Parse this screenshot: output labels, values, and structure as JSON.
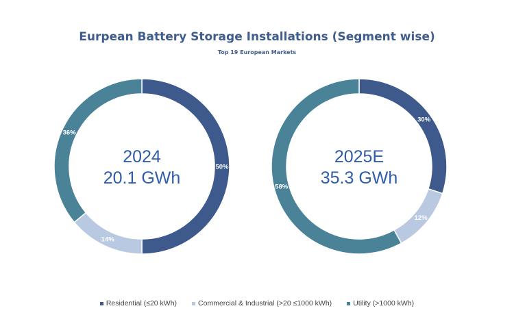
{
  "chart_data": [
    {
      "type": "pie",
      "title": "Eurpean Battery Storage Installations (Segment wise)",
      "subtitle": "Top 19 European Markets",
      "center_label": [
        "2024",
        "20.1 GWh"
      ],
      "categories": [
        "Residential (≤20 kWh)",
        "Commercial & Industrial (>20 ≤1000 kWh)",
        "Utility (>1000 kWh)"
      ],
      "values": [
        50,
        14,
        36
      ],
      "labels": [
        "50%",
        "14%",
        "36%"
      ]
    },
    {
      "type": "pie",
      "center_label": [
        "2025E",
        "35.3 GWh"
      ],
      "categories": [
        "Residential (≤20 kWh)",
        "Commercial & Industrial (>20 ≤1000 kWh)",
        "Utility (>1000 kWh)"
      ],
      "values": [
        30,
        12,
        58
      ],
      "labels": [
        "30%",
        "12%",
        "58%"
      ]
    }
  ],
  "title": "Eurpean Battery Storage Installations (Segment wise)",
  "subtitle": "Top 19 European Markets",
  "legend": [
    "Residential (≤20 kWh)",
    "Commercial & Industrial (>20 ≤1000 kWh)",
    "Utility (>1000 kWh)"
  ],
  "colors": [
    "#3e5a8c",
    "#b9c9e2",
    "#4a8298"
  ]
}
